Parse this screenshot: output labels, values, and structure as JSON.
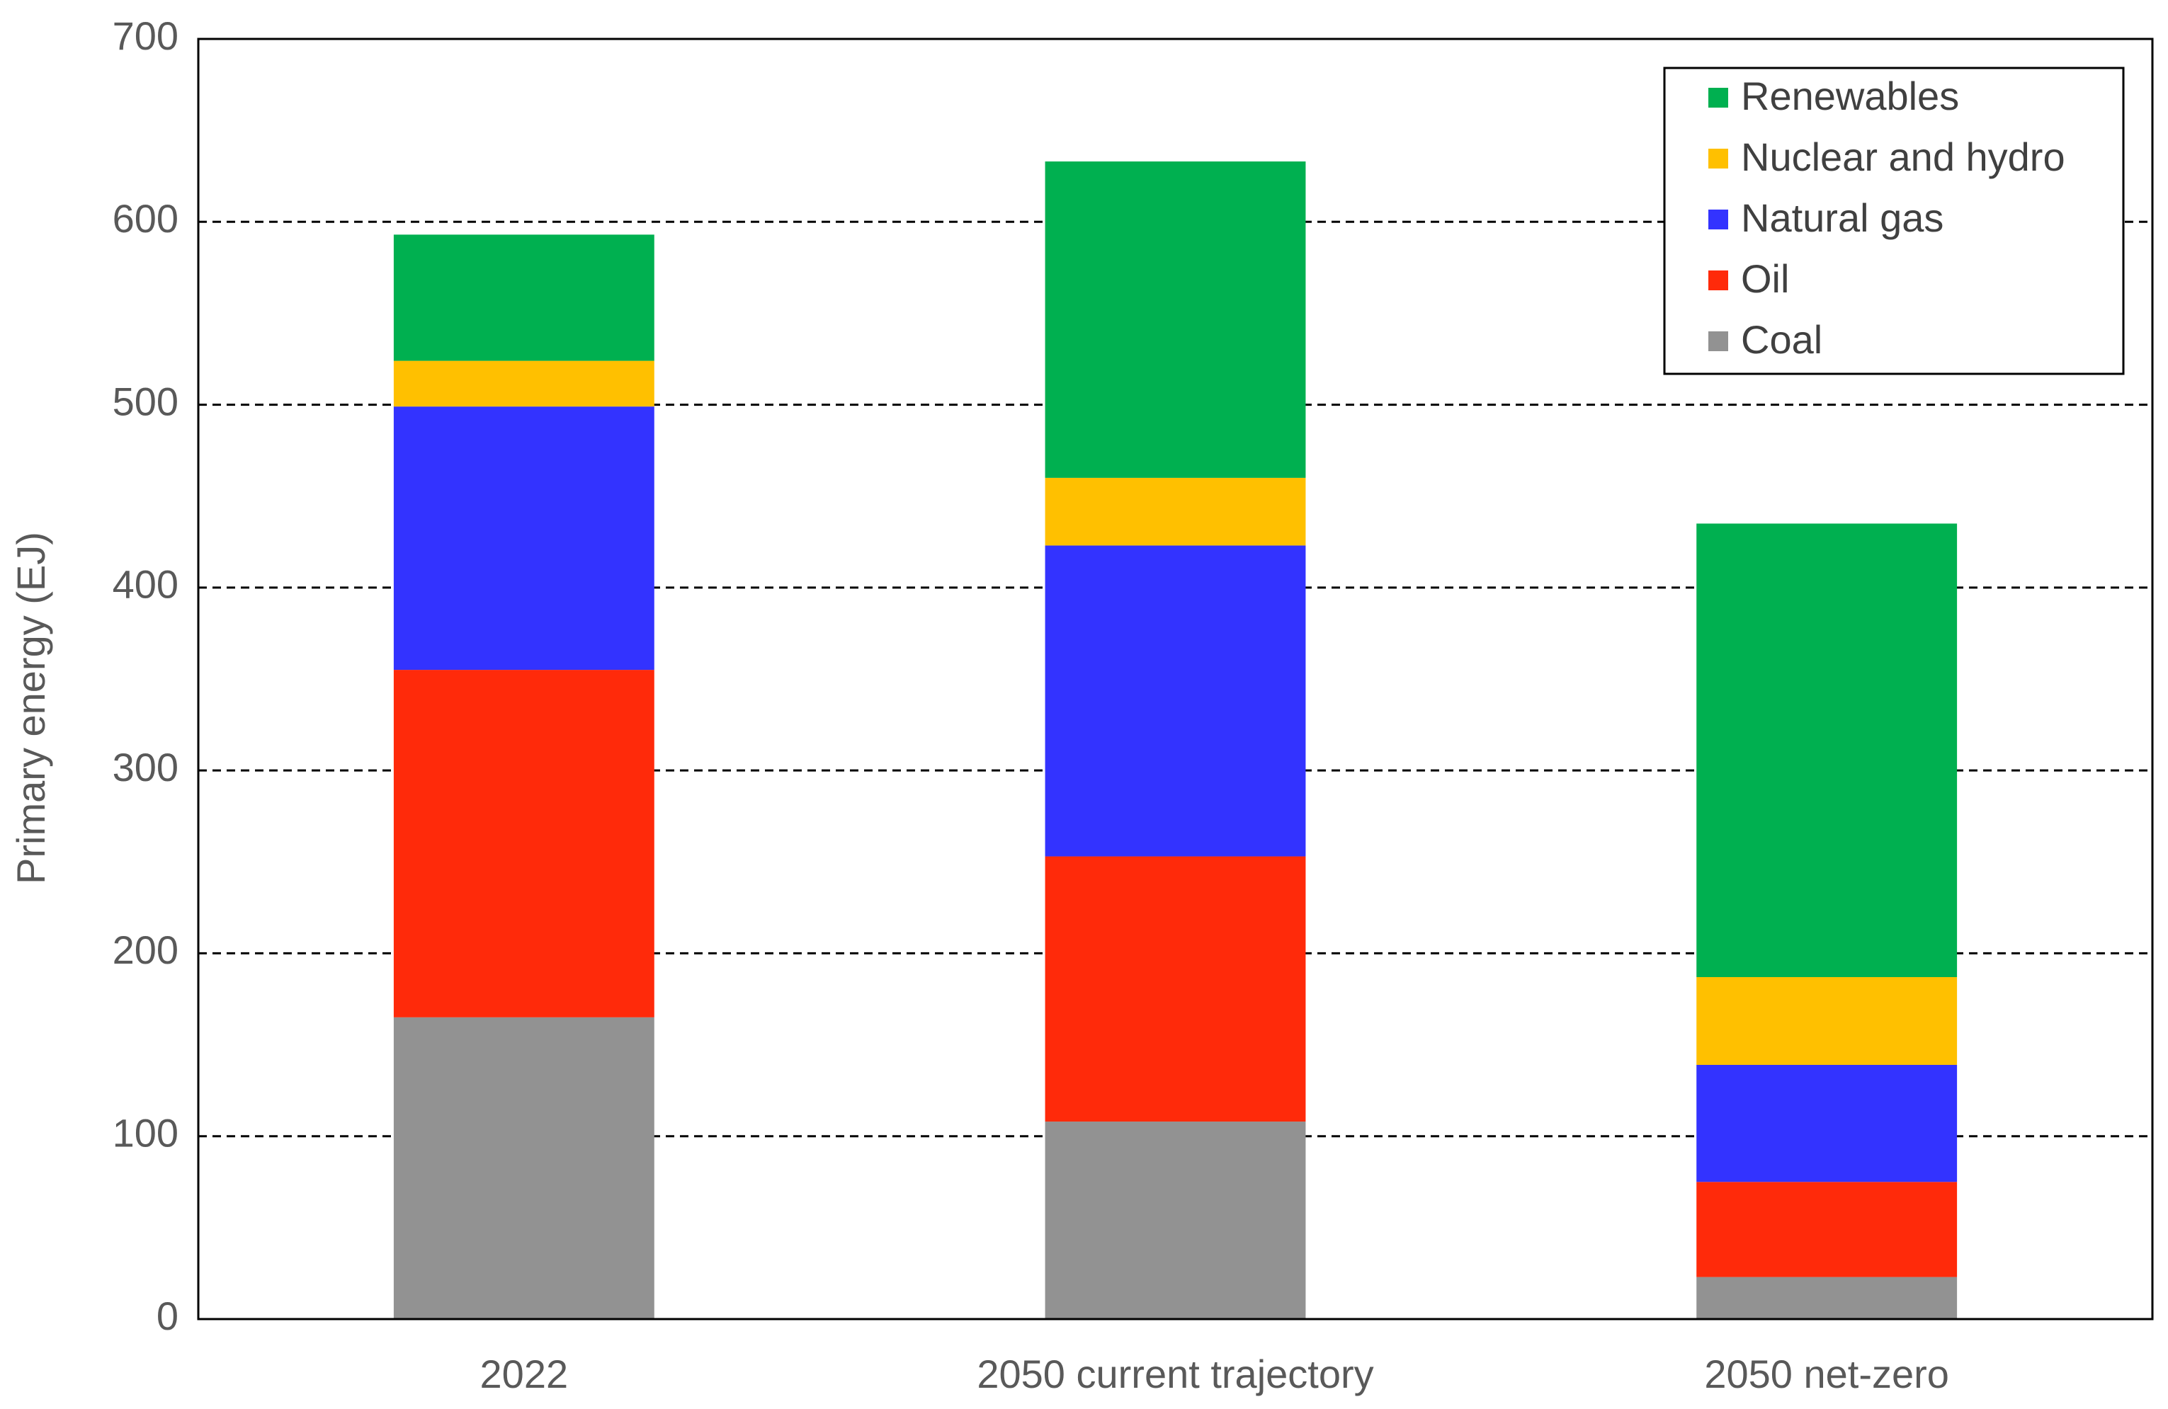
{
  "chart_data": {
    "type": "stacked_bar",
    "y_label": "Primary energy (EJ)",
    "categories": [
      "2022",
      "2050 current trajectory",
      "2050 net-zero"
    ],
    "series": [
      {
        "name": "Coal",
        "color": "#929292",
        "values": [
          165,
          108,
          23
        ]
      },
      {
        "name": "Oil",
        "color": "#ff2a0a",
        "values": [
          190,
          145,
          52
        ]
      },
      {
        "name": "Natural gas",
        "color": "#3333ff",
        "values": [
          144,
          170,
          64
        ]
      },
      {
        "name": "Nuclear and hydro",
        "color": "#ffc000",
        "values": [
          25,
          37,
          48
        ]
      },
      {
        "name": "Renewables",
        "color": "#00b050",
        "values": [
          69,
          173,
          248
        ]
      }
    ],
    "ylim": [
      0,
      700
    ],
    "yticks": [
      0,
      100,
      200,
      300,
      400,
      500,
      600,
      700
    ],
    "grid": true,
    "legend": "upper right"
  }
}
